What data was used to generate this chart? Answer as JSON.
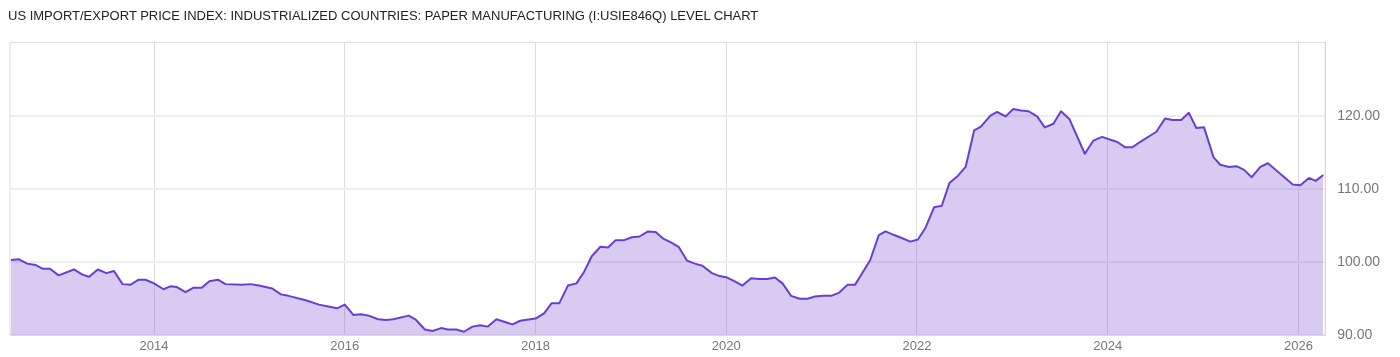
{
  "chart_data": {
    "type": "area",
    "title": "US IMPORT/EXPORT PRICE INDEX: INDUSTRIALIZED COUNTRIES: PAPER MANUFACTURING (I:USIE846Q) LEVEL CHART",
    "x": [
      2012.5,
      2012.58,
      2012.67,
      2012.76,
      2012.83,
      2012.91,
      2013.0,
      2013.16,
      2013.25,
      2013.32,
      2013.41,
      2013.5,
      2013.58,
      2013.67,
      2013.75,
      2013.84,
      2013.91,
      2014.0,
      2014.1,
      2014.17,
      2014.24,
      2014.33,
      2014.41,
      2014.5,
      2014.58,
      2014.67,
      2014.75,
      2014.92,
      2015.01,
      2015.1,
      2015.24,
      2015.33,
      2015.41,
      2015.59,
      2015.73,
      2015.84,
      2015.92,
      2016.0,
      2016.09,
      2016.17,
      2016.25,
      2016.35,
      2016.43,
      2016.51,
      2016.67,
      2016.74,
      2016.84,
      2016.92,
      2017.01,
      2017.08,
      2017.17,
      2017.25,
      2017.34,
      2017.42,
      2017.5,
      2017.59,
      2017.76,
      2017.84,
      2018.0,
      2018.09,
      2018.17,
      2018.25,
      2018.34,
      2018.43,
      2018.51,
      2018.59,
      2018.68,
      2018.76,
      2018.84,
      2018.93,
      2019.01,
      2019.09,
      2019.18,
      2019.26,
      2019.34,
      2019.42,
      2019.5,
      2019.59,
      2019.67,
      2019.75,
      2019.85,
      2019.93,
      2020.01,
      2020.1,
      2020.17,
      2020.26,
      2020.34,
      2020.43,
      2020.51,
      2020.59,
      2020.68,
      2020.77,
      2020.85,
      2020.93,
      2021.02,
      2021.1,
      2021.18,
      2021.27,
      2021.35,
      2021.43,
      2021.51,
      2021.6,
      2021.67,
      2021.76,
      2021.84,
      2021.93,
      2022.01,
      2022.09,
      2022.18,
      2022.26,
      2022.34,
      2022.43,
      2022.51,
      2022.6,
      2022.67,
      2022.77,
      2022.84,
      2022.93,
      2023.01,
      2023.09,
      2023.17,
      2023.26,
      2023.34,
      2023.43,
      2023.51,
      2023.6,
      2023.76,
      2023.85,
      2023.94,
      2024.1,
      2024.18,
      2024.26,
      2024.35,
      2024.51,
      2024.6,
      2024.68,
      2024.77,
      2024.85,
      2024.93,
      2025.01,
      2025.11,
      2025.18,
      2025.27,
      2025.35,
      2025.43,
      2025.51,
      2025.6,
      2025.68,
      2025.94,
      2026.02,
      2026.11,
      2026.18,
      2026.26
    ],
    "series": [
      {
        "color": "#6a3fd0",
        "values": [
          100.3,
          100.4,
          99.8,
          99.6,
          99.1,
          99.1,
          98.2,
          99.0,
          98.3,
          98.0,
          99.0,
          98.5,
          98.8,
          97.0,
          96.9,
          97.6,
          97.6,
          97.1,
          96.3,
          96.7,
          96.6,
          95.9,
          96.5,
          96.5,
          97.4,
          97.6,
          97.0,
          96.9,
          97.0,
          96.8,
          96.4,
          95.6,
          95.4,
          94.8,
          94.2,
          93.9,
          93.7,
          94.2,
          92.8,
          92.9,
          92.7,
          92.2,
          92.1,
          92.2,
          92.7,
          92.2,
          90.8,
          90.6,
          91.0,
          90.8,
          90.8,
          90.5,
          91.2,
          91.4,
          91.2,
          92.2,
          91.5,
          92.0,
          92.3,
          93.0,
          94.4,
          94.4,
          96.8,
          97.1,
          98.7,
          100.8,
          102.1,
          102.0,
          103.0,
          103.0,
          103.4,
          103.5,
          104.2,
          104.1,
          103.2,
          102.7,
          102.1,
          100.2,
          99.8,
          99.5,
          98.5,
          98.1,
          97.9,
          97.3,
          96.8,
          97.8,
          97.7,
          97.7,
          97.9,
          97.1,
          95.4,
          95.0,
          95.0,
          95.3,
          95.4,
          95.4,
          95.8,
          96.9,
          96.9,
          98.6,
          100.3,
          103.7,
          104.2,
          103.7,
          103.3,
          102.8,
          103.1,
          104.7,
          107.5,
          107.7,
          110.8,
          111.8,
          113.0,
          118.0,
          118.5,
          120.0,
          120.5,
          119.9,
          120.9,
          120.7,
          120.6,
          119.9,
          118.4,
          118.9,
          120.6,
          119.5,
          114.8,
          116.6,
          117.1,
          116.4,
          115.7,
          115.7,
          116.5,
          117.8,
          119.6,
          119.4,
          119.4,
          120.4,
          118.3,
          118.4,
          114.3,
          113.3,
          113.0,
          113.1,
          112.6,
          111.6,
          113.0,
          113.5,
          110.6,
          110.5,
          111.5,
          111.1,
          111.9
        ]
      }
    ],
    "xlim": [
      2012.49,
      2026.28
    ],
    "xticks": [
      2014,
      2016,
      2018,
      2020,
      2022,
      2024,
      2026
    ],
    "ylim": [
      90,
      130
    ],
    "yticks": [
      {
        "value": 90,
        "label": "90.00"
      },
      {
        "value": 100,
        "label": "100.00"
      },
      {
        "value": 110,
        "label": "110.00"
      },
      {
        "value": 120,
        "label": "120.00"
      }
    ],
    "grid": true,
    "legend": false,
    "marker": "none",
    "line_style": "solid"
  }
}
